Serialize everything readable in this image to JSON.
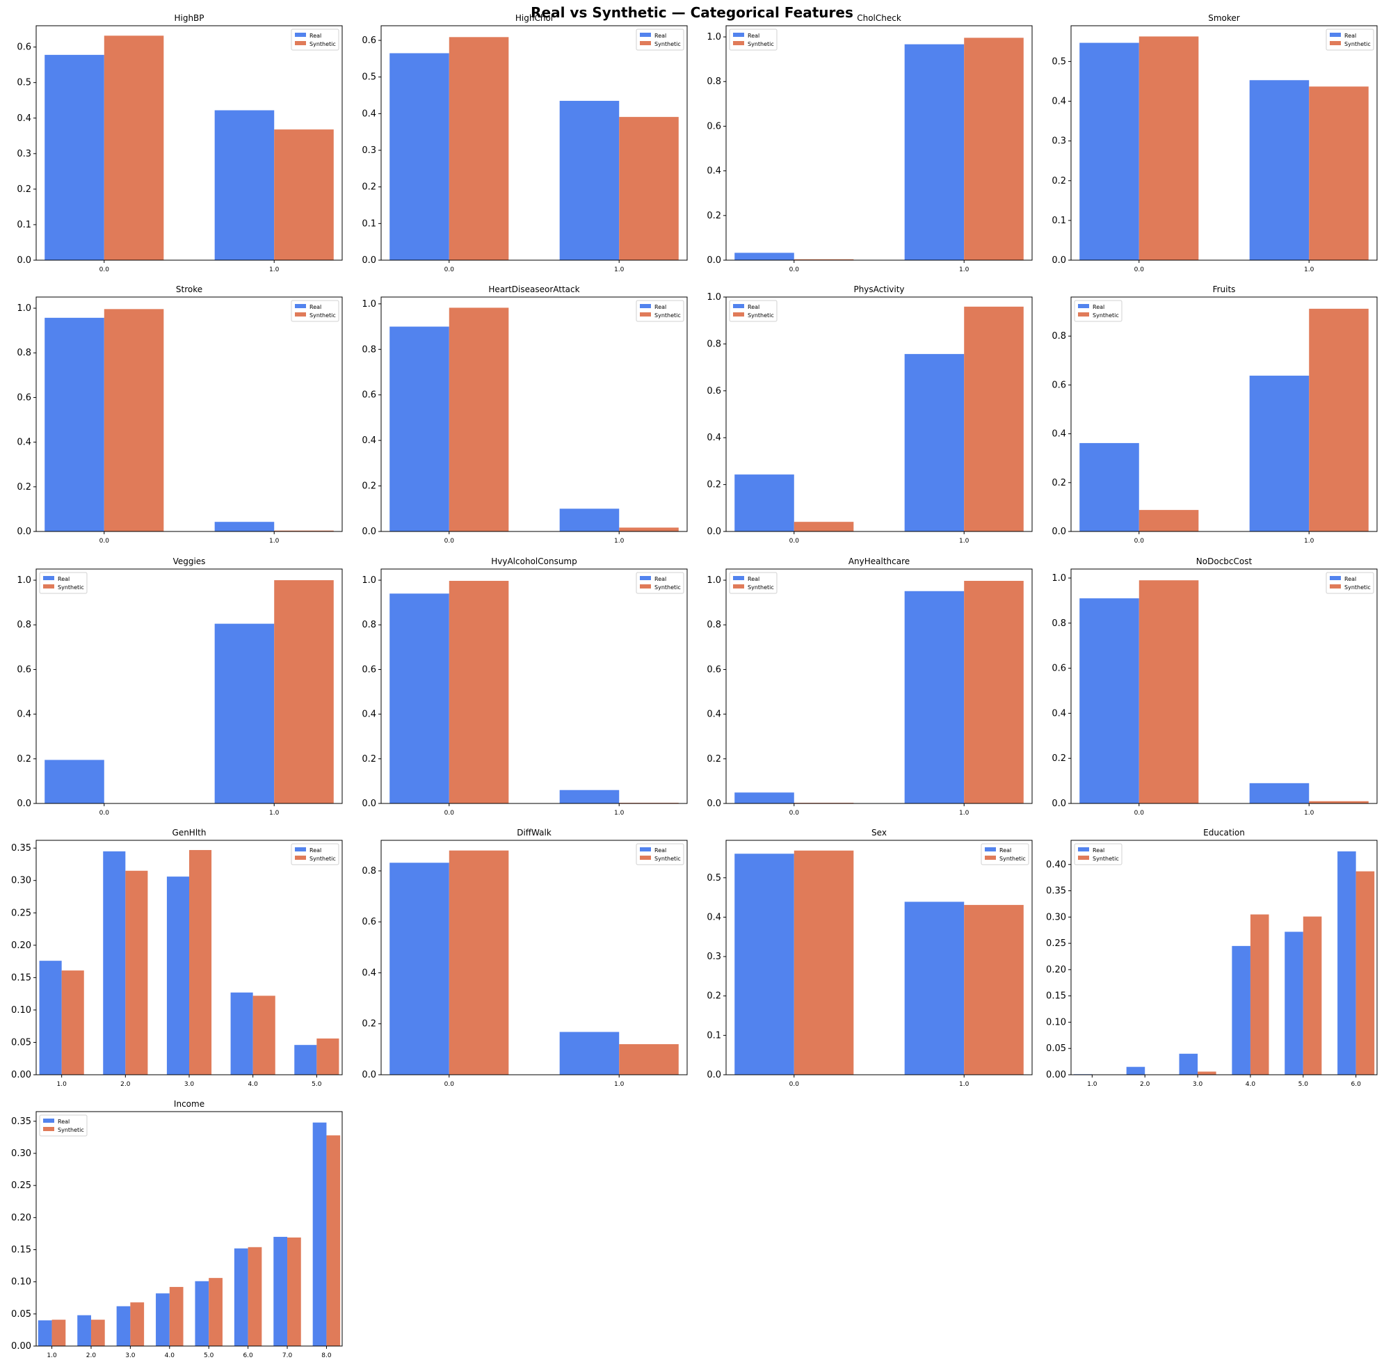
{
  "figure": {
    "title": "Real vs Synthetic — Categorical Features",
    "colors": {
      "real": "#5283EE",
      "synthetic": "#E07B59"
    }
  },
  "chart_data": [
    {
      "type": "bar",
      "title": "HighBP",
      "categories": [
        "0.0",
        "1.0"
      ],
      "ylim": [
        0,
        0.66
      ],
      "yticks": [
        "0.0",
        "0.1",
        "0.2",
        "0.3",
        "0.4",
        "0.5",
        "0.6"
      ],
      "legend": "top-right",
      "series": [
        {
          "name": "Real",
          "values": [
            0.578,
            0.422
          ]
        },
        {
          "name": "Synthetic",
          "values": [
            0.632,
            0.368
          ]
        }
      ]
    },
    {
      "type": "bar",
      "title": "HighChol",
      "categories": [
        "0.0",
        "1.0"
      ],
      "ylim": [
        0,
        0.64
      ],
      "yticks": [
        "0.0",
        "0.1",
        "0.2",
        "0.3",
        "0.4",
        "0.5",
        "0.6"
      ],
      "legend": "top-right",
      "series": [
        {
          "name": "Real",
          "values": [
            0.565,
            0.435
          ]
        },
        {
          "name": "Synthetic",
          "values": [
            0.609,
            0.391
          ]
        }
      ]
    },
    {
      "type": "bar",
      "title": "CholCheck",
      "categories": [
        "0.0",
        "1.0"
      ],
      "ylim": [
        0,
        1.05
      ],
      "yticks": [
        "0.0",
        "0.2",
        "0.4",
        "0.6",
        "0.8",
        "1.0"
      ],
      "legend": "top-left",
      "series": [
        {
          "name": "Real",
          "values": [
            0.033,
            0.967
          ]
        },
        {
          "name": "Synthetic",
          "values": [
            0.004,
            0.996
          ]
        }
      ]
    },
    {
      "type": "bar",
      "title": "Smoker",
      "categories": [
        "0.0",
        "1.0"
      ],
      "ylim": [
        0,
        0.59
      ],
      "yticks": [
        "0.0",
        "0.1",
        "0.2",
        "0.3",
        "0.4",
        "0.5"
      ],
      "legend": "top-right",
      "series": [
        {
          "name": "Real",
          "values": [
            0.547,
            0.453
          ]
        },
        {
          "name": "Synthetic",
          "values": [
            0.563,
            0.437
          ]
        }
      ]
    },
    {
      "type": "bar",
      "title": "Stroke",
      "categories": [
        "0.0",
        "1.0"
      ],
      "ylim": [
        0,
        1.05
      ],
      "yticks": [
        "0.0",
        "0.2",
        "0.4",
        "0.6",
        "0.8",
        "1.0"
      ],
      "legend": "top-right",
      "series": [
        {
          "name": "Real",
          "values": [
            0.957,
            0.043
          ]
        },
        {
          "name": "Synthetic",
          "values": [
            0.996,
            0.004
          ]
        }
      ]
    },
    {
      "type": "bar",
      "title": "HeartDiseaseorAttack",
      "categories": [
        "0.0",
        "1.0"
      ],
      "ylim": [
        0,
        1.03
      ],
      "yticks": [
        "0.0",
        "0.2",
        "0.4",
        "0.6",
        "0.8",
        "1.0"
      ],
      "legend": "top-right",
      "series": [
        {
          "name": "Real",
          "values": [
            0.9,
            0.1
          ]
        },
        {
          "name": "Synthetic",
          "values": [
            0.983,
            0.017
          ]
        }
      ]
    },
    {
      "type": "bar",
      "title": "PhysActivity",
      "categories": [
        "0.0",
        "1.0"
      ],
      "ylim": [
        0,
        1.0
      ],
      "yticks": [
        "0.0",
        "0.2",
        "0.4",
        "0.6",
        "0.8",
        "1.0"
      ],
      "legend": "top-left",
      "series": [
        {
          "name": "Real",
          "values": [
            0.243,
            0.757
          ]
        },
        {
          "name": "Synthetic",
          "values": [
            0.041,
            0.959
          ]
        }
      ]
    },
    {
      "type": "bar",
      "title": "Fruits",
      "categories": [
        "0.0",
        "1.0"
      ],
      "ylim": [
        0,
        0.96
      ],
      "yticks": [
        "0.0",
        "0.2",
        "0.4",
        "0.6",
        "0.8"
      ],
      "legend": "top-left",
      "series": [
        {
          "name": "Real",
          "values": [
            0.362,
            0.638
          ]
        },
        {
          "name": "Synthetic",
          "values": [
            0.088,
            0.912
          ]
        }
      ]
    },
    {
      "type": "bar",
      "title": "Veggies",
      "categories": [
        "0.0",
        "1.0"
      ],
      "ylim": [
        0,
        1.05
      ],
      "yticks": [
        "0.0",
        "0.2",
        "0.4",
        "0.6",
        "0.8",
        "1.0"
      ],
      "legend": "top-left",
      "series": [
        {
          "name": "Real",
          "values": [
            0.195,
            0.805
          ]
        },
        {
          "name": "Synthetic",
          "values": [
            0.0,
            1.0
          ]
        }
      ]
    },
    {
      "type": "bar",
      "title": "HvyAlcoholConsump",
      "categories": [
        "0.0",
        "1.0"
      ],
      "ylim": [
        0,
        1.05
      ],
      "yticks": [
        "0.0",
        "0.2",
        "0.4",
        "0.6",
        "0.8",
        "1.0"
      ],
      "legend": "top-right",
      "series": [
        {
          "name": "Real",
          "values": [
            0.94,
            0.06
          ]
        },
        {
          "name": "Synthetic",
          "values": [
            0.997,
            0.003
          ]
        }
      ]
    },
    {
      "type": "bar",
      "title": "AnyHealthcare",
      "categories": [
        "0.0",
        "1.0"
      ],
      "ylim": [
        0,
        1.05
      ],
      "yticks": [
        "0.0",
        "0.2",
        "0.4",
        "0.6",
        "0.8",
        "1.0"
      ],
      "legend": "top-left",
      "series": [
        {
          "name": "Real",
          "values": [
            0.049,
            0.951
          ]
        },
        {
          "name": "Synthetic",
          "values": [
            0.003,
            0.997
          ]
        }
      ]
    },
    {
      "type": "bar",
      "title": "NoDocbcCost",
      "categories": [
        "0.0",
        "1.0"
      ],
      "ylim": [
        0,
        1.04
      ],
      "yticks": [
        "0.0",
        "0.2",
        "0.4",
        "0.6",
        "0.8",
        "1.0"
      ],
      "legend": "top-right",
      "series": [
        {
          "name": "Real",
          "values": [
            0.91,
            0.09
          ]
        },
        {
          "name": "Synthetic",
          "values": [
            0.99,
            0.01
          ]
        }
      ]
    },
    {
      "type": "bar",
      "title": "GenHlth",
      "categories": [
        "1.0",
        "2.0",
        "3.0",
        "4.0",
        "5.0"
      ],
      "ylim": [
        0,
        0.362
      ],
      "yticks": [
        "0.00",
        "0.05",
        "0.10",
        "0.15",
        "0.20",
        "0.25",
        "0.30",
        "0.35"
      ],
      "legend": "top-right",
      "series": [
        {
          "name": "Real",
          "values": [
            0.176,
            0.345,
            0.306,
            0.127,
            0.046
          ]
        },
        {
          "name": "Synthetic",
          "values": [
            0.161,
            0.315,
            0.347,
            0.122,
            0.056
          ]
        }
      ]
    },
    {
      "type": "bar",
      "title": "DiffWalk",
      "categories": [
        "0.0",
        "1.0"
      ],
      "ylim": [
        0,
        0.92
      ],
      "yticks": [
        "0.0",
        "0.2",
        "0.4",
        "0.6",
        "0.8"
      ],
      "legend": "top-right",
      "series": [
        {
          "name": "Real",
          "values": [
            0.832,
            0.168
          ]
        },
        {
          "name": "Synthetic",
          "values": [
            0.88,
            0.12
          ]
        }
      ]
    },
    {
      "type": "bar",
      "title": "Sex",
      "categories": [
        "0.0",
        "1.0"
      ],
      "ylim": [
        0,
        0.595
      ],
      "yticks": [
        "0.0",
        "0.1",
        "0.2",
        "0.3",
        "0.4",
        "0.5"
      ],
      "legend": "top-right",
      "series": [
        {
          "name": "Real",
          "values": [
            0.561,
            0.439
          ]
        },
        {
          "name": "Synthetic",
          "values": [
            0.569,
            0.431
          ]
        }
      ]
    },
    {
      "type": "bar",
      "title": "Education",
      "categories": [
        "1.0",
        "2.0",
        "3.0",
        "4.0",
        "5.0",
        "6.0"
      ],
      "ylim": [
        0,
        0.446
      ],
      "yticks": [
        "0.00",
        "0.05",
        "0.10",
        "0.15",
        "0.20",
        "0.25",
        "0.30",
        "0.35",
        "0.40"
      ],
      "legend": "top-left",
      "series": [
        {
          "name": "Real",
          "values": [
            0.001,
            0.015,
            0.04,
            0.245,
            0.272,
            0.425
          ]
        },
        {
          "name": "Synthetic",
          "values": [
            0.0,
            0.0,
            0.006,
            0.305,
            0.301,
            0.387
          ]
        }
      ]
    },
    {
      "type": "bar",
      "title": "Income",
      "categories": [
        "1.0",
        "2.0",
        "3.0",
        "4.0",
        "5.0",
        "6.0",
        "7.0",
        "8.0"
      ],
      "ylim": [
        0,
        0.365
      ],
      "yticks": [
        "0.00",
        "0.05",
        "0.10",
        "0.15",
        "0.20",
        "0.25",
        "0.30",
        "0.35"
      ],
      "legend": "top-left",
      "series": [
        {
          "name": "Real",
          "values": [
            0.04,
            0.048,
            0.062,
            0.082,
            0.101,
            0.152,
            0.17,
            0.348
          ]
        },
        {
          "name": "Synthetic",
          "values": [
            0.041,
            0.041,
            0.068,
            0.092,
            0.106,
            0.154,
            0.169,
            0.328
          ]
        }
      ]
    }
  ]
}
